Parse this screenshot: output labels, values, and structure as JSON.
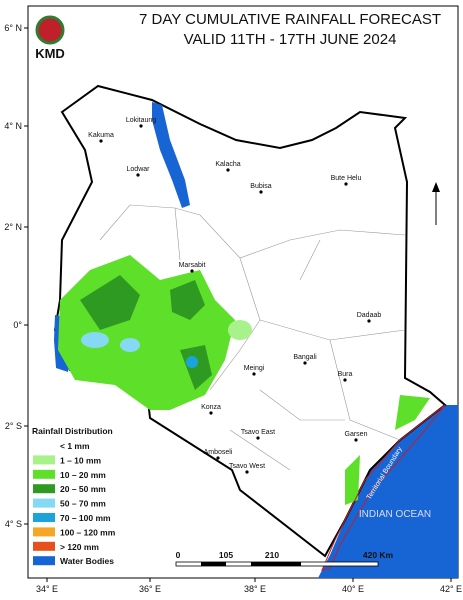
{
  "header": {
    "title_lines": [
      "7 DAY CUMULATIVE RAINFALL FORECAST",
      "VALID 11TH - 17TH JUNE  2024"
    ],
    "logo": "KMD"
  },
  "map": {
    "lat_labels": [
      "6° N",
      "4° N",
      "2° N",
      "0°",
      "2° S",
      "4° S"
    ],
    "lon_labels": [
      "34° E",
      "36° E",
      "38° E",
      "40° E",
      "42° E"
    ],
    "places": [
      "Lokitaung",
      "Kakuma",
      "Lodwar",
      "Kalacha",
      "Bubisa",
      "Bute Helu",
      "Marsabit",
      "Dadaab",
      "Bangali",
      "Meingi",
      "Bura",
      "Konza",
      "Tsavo East",
      "Garsen",
      "Amboseli",
      "Tsavo West"
    ],
    "ocean_label": "INDIAN OCEAN",
    "boundary_label": "Territorial Boundary"
  },
  "legend": {
    "title": "Rainfall Distribution",
    "items": [
      {
        "label": "< 1 mm",
        "color": "#ffffff"
      },
      {
        "label": "1 – 10 mm",
        "color": "#a8f28c"
      },
      {
        "label": "10 – 20 mm",
        "color": "#5ee02a"
      },
      {
        "label": "20 – 50 mm",
        "color": "#2e9a22"
      },
      {
        "label": "50 – 70 mm",
        "color": "#86d9f2"
      },
      {
        "label": "70 – 100 mm",
        "color": "#1ba3dc"
      },
      {
        "label": "100 – 120 mm",
        "color": "#f5a623"
      },
      {
        "label": "> 120 mm",
        "color": "#e5501c"
      },
      {
        "label": "Water Bodies",
        "color": "#1764d4"
      }
    ]
  },
  "scale_bar": {
    "labels": [
      "0",
      "105",
      "210",
      "420 Km"
    ]
  }
}
